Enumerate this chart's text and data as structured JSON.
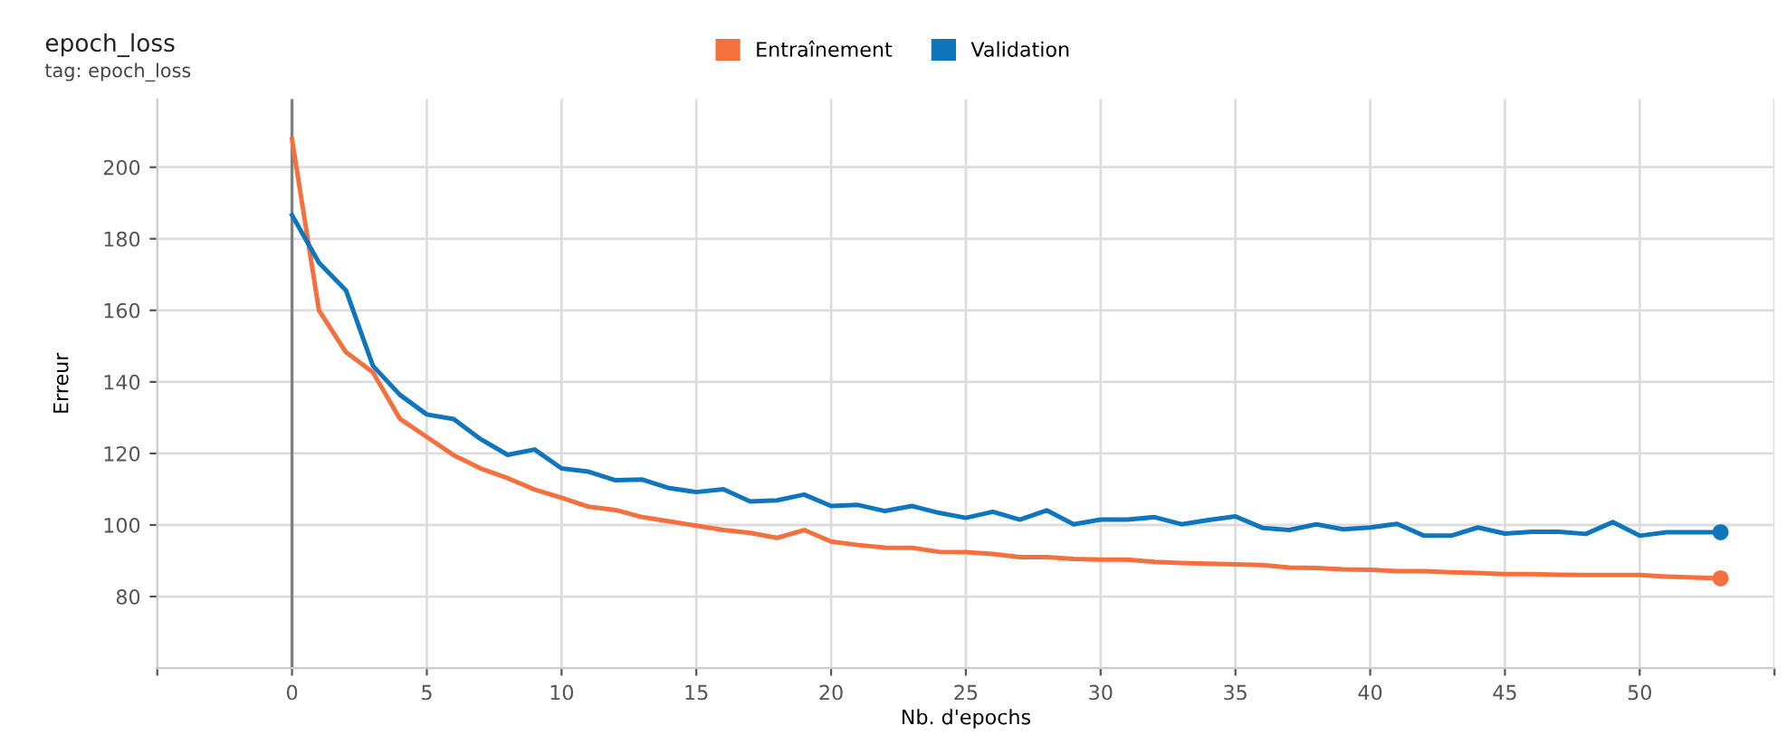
{
  "chart_data": {
    "type": "line",
    "title": "epoch_loss",
    "subtitle": "tag: epoch_loss",
    "xlabel": "Nb. d'epochs",
    "ylabel": "Erreur",
    "x": [
      0,
      1,
      2,
      3,
      4,
      5,
      6,
      7,
      8,
      9,
      10,
      11,
      12,
      13,
      14,
      15,
      16,
      17,
      18,
      19,
      20,
      21,
      22,
      23,
      24,
      25,
      26,
      27,
      28,
      29,
      30,
      31,
      32,
      33,
      34,
      35,
      36,
      37,
      38,
      39,
      40,
      41,
      42,
      43,
      44,
      45,
      46,
      47,
      48,
      49,
      50,
      51,
      52,
      53
    ],
    "series": [
      {
        "name": "Entraînement",
        "color": "#f4703e",
        "values": [
          207.8,
          160,
          148.3,
          142.7,
          129.7,
          124.6,
          119.5,
          115.8,
          113.1,
          109.9,
          107.6,
          105.1,
          104.2,
          102.2,
          101,
          99.8,
          98.6,
          97.8,
          96.4,
          98.6,
          95.4,
          94.4,
          93.7,
          93.6,
          92.5,
          92.4,
          91.9,
          91,
          91,
          90.5,
          90.3,
          90.3,
          89.7,
          89.4,
          89.2,
          89,
          88.8,
          88.1,
          88,
          87.6,
          87.5,
          87.1,
          87.1,
          86.8,
          86.6,
          86.3,
          86.3,
          86.1,
          86,
          86,
          86,
          85.6,
          85.3,
          85.1
        ]
      },
      {
        "name": "Validation",
        "color": "#0f76bd",
        "values": [
          186.6,
          173.3,
          165.6,
          144.5,
          136.4,
          130.9,
          129.6,
          124,
          119.6,
          121.1,
          115.8,
          114.9,
          112.5,
          112.7,
          110.3,
          109.2,
          110,
          106.6,
          106.9,
          108.5,
          105.3,
          105.6,
          103.9,
          105.3,
          103.4,
          102,
          103.7,
          101.5,
          104.1,
          100.2,
          101.5,
          101.5,
          102.2,
          100.2,
          101.4,
          102.4,
          99.2,
          98.6,
          100.2,
          98.8,
          99.3,
          100.3,
          97,
          97,
          99.3,
          97.6,
          98.1,
          98.1,
          97.5,
          100.8,
          97,
          98,
          98,
          98
        ]
      }
    ],
    "xlim": [
      -5,
      55
    ],
    "xticks": [
      {
        "value": -5,
        "label": null
      },
      0,
      5,
      10,
      15,
      20,
      25,
      30,
      35,
      40,
      45,
      50,
      {
        "value": 55,
        "label": null
      }
    ],
    "ylim": [
      60,
      219
    ],
    "yticks": [
      80,
      100,
      120,
      140,
      160,
      180,
      200
    ],
    "ref_lines": [
      {
        "axis": "x",
        "value": 0,
        "color": "#808080"
      }
    ],
    "grid": true,
    "legend": "top",
    "line_style": "solid"
  }
}
